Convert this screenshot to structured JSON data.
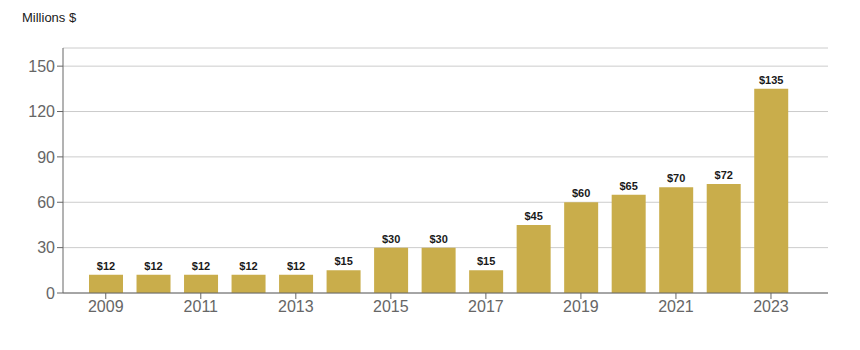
{
  "chart_data": {
    "type": "bar",
    "y_label": "Millions $",
    "x": [
      2009,
      2010,
      2011,
      2012,
      2013,
      2014,
      2015,
      2016,
      2017,
      2018,
      2019,
      2020,
      2021,
      2022,
      2023
    ],
    "values": [
      12,
      12,
      12,
      12,
      12,
      15,
      30,
      30,
      15,
      45,
      60,
      65,
      70,
      72,
      135
    ],
    "value_labels": [
      "$12",
      "$12",
      "$12",
      "$12",
      "$12",
      "$15",
      "$30",
      "$30",
      "$15",
      "$45",
      "$60",
      "$65",
      "$70",
      "$72",
      "$135"
    ],
    "data_labels": true,
    "color": "#C9AD4B",
    "xlim": [
      2008.1,
      2024.2
    ],
    "xticks": [
      2009,
      2011,
      2013,
      2015,
      2017,
      2019,
      2021,
      2023
    ],
    "ylim": [
      0,
      162
    ],
    "yticks": [
      0,
      30,
      60,
      90,
      120,
      150
    ],
    "grid": true
  }
}
